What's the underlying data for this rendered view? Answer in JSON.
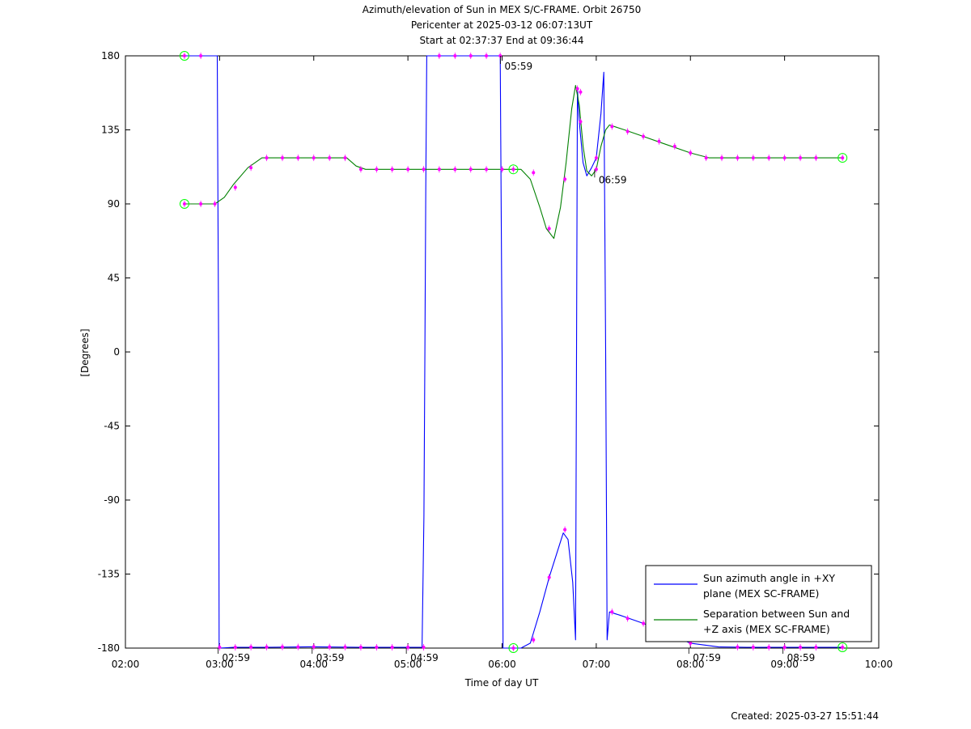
{
  "chart_data": {
    "type": "line",
    "title_lines": [
      "Azimuth/elevation of Sun in MEX S/C-FRAME.  Orbit 26750",
      "Pericenter at 2025-03-12 06:07:13UT",
      "Start at 02:37:37 End at 09:36:44"
    ],
    "xlabel": "Time of day UT",
    "ylabel": "[Degrees]",
    "xlim": [
      2.0,
      10.0
    ],
    "ylim": [
      -180,
      180
    ],
    "x_ticks": [
      2,
      3,
      4,
      5,
      6,
      7,
      8,
      9,
      10
    ],
    "x_tick_labels": [
      "02:00",
      "03:00",
      "04:00",
      "05:00",
      "06:00",
      "07:00",
      "08:00",
      "09:00",
      "10:00"
    ],
    "y_ticks": [
      180,
      135,
      90,
      45,
      0,
      -45,
      -90,
      -135,
      -180
    ],
    "y_tick_labels": [
      "180",
      "135",
      "90",
      "45",
      "0",
      "-45",
      "-90",
      "-135",
      "-180"
    ],
    "grid": false,
    "legend_position": "bottom-right",
    "footer": "Created: 2025-03-27 15:51:44",
    "colors": {
      "azimuth": "#0000ff",
      "separation": "#008000",
      "markers": "#ff00ff",
      "endpoints": "#00ff00",
      "axes": "#000000"
    },
    "series": [
      {
        "name": "Sun azimuth angle in +XY plane (MEX SC-FRAME)",
        "legend_lines": [
          "Sun azimuth angle in +XY",
          "plane (MEX SC-FRAME)"
        ],
        "color": "#0000ff",
        "x": [
          2.627,
          2.95,
          2.975,
          2.99,
          2.995,
          3.0,
          3.15,
          3.5,
          4.0,
          4.5,
          5.0,
          5.15,
          5.17,
          5.18,
          5.19,
          5.2,
          5.5,
          5.98,
          6.0,
          6.01,
          6.02,
          6.03,
          6.12,
          6.2,
          6.3,
          6.4,
          6.5,
          6.65,
          6.7,
          6.75,
          6.78,
          6.8,
          6.82,
          6.86,
          6.9,
          6.95,
          7.0,
          7.05,
          7.08,
          7.1,
          7.115,
          7.14,
          7.25,
          7.4,
          7.5,
          7.7,
          8.0,
          8.3,
          8.6,
          9.0,
          9.3,
          9.615
        ],
        "y": [
          180,
          180,
          180,
          0,
          -180,
          -180,
          -179.5,
          -179.5,
          -179.2,
          -179.5,
          -179.5,
          -179.5,
          -100,
          0,
          100,
          180,
          180,
          180,
          0,
          -180,
          -180,
          -180,
          -180,
          -180,
          -177,
          -158,
          -137,
          -110,
          -114,
          -140,
          -175,
          160,
          140,
          115,
          107,
          112,
          118,
          145,
          170,
          0,
          -175,
          -158,
          -160,
          -163,
          -165,
          -170,
          -177,
          -179.3,
          -179.5,
          -179.5,
          -179.5,
          -179.5
        ]
      },
      {
        "name": "Separation between Sun and +Z axis (MEX SC-FRAME)",
        "legend_lines": [
          "Separation between Sun and",
          "+Z axis (MEX SC-FRAME)"
        ],
        "color": "#008000",
        "x": [
          2.627,
          2.8,
          2.95,
          3.05,
          3.15,
          3.3,
          3.45,
          3.6,
          4.0,
          4.35,
          4.45,
          4.55,
          4.7,
          5.0,
          5.5,
          6.0,
          6.12,
          6.2,
          6.3,
          6.4,
          6.47,
          6.55,
          6.62,
          6.68,
          6.74,
          6.78,
          6.82,
          6.86,
          6.9,
          6.95,
          7.0,
          7.05,
          7.1,
          7.14,
          7.3,
          7.5,
          7.7,
          8.0,
          8.2,
          8.5,
          9.0,
          9.3,
          9.615
        ],
        "y": [
          90,
          90,
          90,
          94,
          102,
          112,
          118,
          118,
          118,
          118,
          113,
          111,
          111,
          111,
          111,
          111,
          111,
          111,
          105,
          88,
          75,
          69,
          88,
          115,
          148,
          162,
          150,
          125,
          110,
          107,
          111,
          125,
          135,
          138,
          135,
          131,
          127,
          121,
          118,
          118,
          118,
          118,
          118
        ]
      }
    ],
    "marker_points": {
      "azimuth": {
        "x": [
          2.627,
          2.8,
          3.0,
          3.167,
          3.333,
          3.5,
          3.667,
          3.833,
          4.0,
          4.167,
          4.333,
          4.5,
          4.667,
          4.833,
          5.0,
          5.167,
          5.333,
          5.5,
          5.667,
          5.833,
          5.98,
          6.12,
          6.333,
          6.5,
          6.667,
          6.8,
          6.833,
          7.0,
          7.167,
          7.333,
          7.5,
          8.0,
          8.5,
          8.667,
          8.833,
          9.0,
          9.167,
          9.333,
          9.615
        ],
        "y": [
          180,
          180,
          -179.5,
          -179.5,
          -179.4,
          -179.4,
          -179.3,
          -179.3,
          -179.2,
          -179.3,
          -179.4,
          -179.5,
          -179.5,
          -179.5,
          -179.5,
          -179.5,
          180,
          180,
          180,
          180,
          180,
          -180,
          -175,
          -137,
          -108,
          160,
          140,
          118,
          -158,
          -162,
          -165,
          -177,
          -179.4,
          -179.5,
          -179.5,
          -179.5,
          -179.5,
          -179.5,
          -179.5
        ]
      },
      "separation": {
        "x": [
          2.627,
          2.8,
          2.95,
          3.167,
          3.333,
          3.5,
          3.667,
          3.833,
          4.0,
          4.167,
          4.333,
          4.5,
          4.667,
          4.833,
          5.0,
          5.167,
          5.333,
          5.5,
          5.667,
          5.833,
          6.0,
          6.12,
          6.333,
          6.5,
          6.667,
          6.833,
          7.0,
          7.167,
          7.333,
          7.5,
          7.667,
          7.833,
          8.0,
          8.167,
          8.333,
          8.5,
          8.667,
          8.833,
          9.0,
          9.167,
          9.333,
          9.615
        ],
        "y": [
          90,
          90,
          90,
          100,
          112,
          118,
          118,
          118,
          118,
          118,
          118,
          111,
          111,
          111,
          111,
          111,
          111,
          111,
          111,
          111,
          111,
          111,
          109,
          75,
          105,
          158,
          111,
          137,
          134,
          131,
          128,
          125,
          121,
          118,
          118,
          118,
          118,
          118,
          118,
          118,
          118,
          118
        ]
      }
    },
    "endpoint_circles": [
      {
        "x": 2.627,
        "y": 180
      },
      {
        "x": 2.627,
        "y": 90
      },
      {
        "x": 6.12,
        "y": 111
      },
      {
        "x": 6.12,
        "y": -180
      },
      {
        "x": 9.615,
        "y": 118
      },
      {
        "x": 9.615,
        "y": -179.5
      }
    ],
    "hour_tick_annotations": [
      {
        "label": "05:59",
        "x": 5.983,
        "y": 180
      },
      {
        "label": "06:59",
        "x": 6.983,
        "y": 111
      },
      {
        "label": "02:59",
        "x": 2.983,
        "y": -180
      },
      {
        "label": "03:59",
        "x": 3.983,
        "y": -180
      },
      {
        "label": "04:59",
        "x": 4.983,
        "y": -180
      },
      {
        "label": "07:59",
        "x": 7.983,
        "y": -180
      },
      {
        "label": "08:59",
        "x": 8.983,
        "y": -180
      }
    ]
  }
}
